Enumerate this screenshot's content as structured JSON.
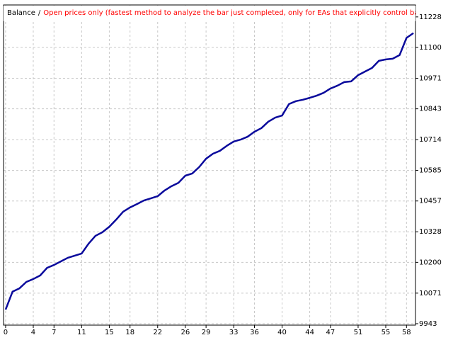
{
  "chart_data": {
    "type": "line",
    "title": "Balance",
    "separator": "/",
    "subtitle": "Open prices only (fastest method to analyze the bar just completed, only for EAs that explicitly control bar opening",
    "x": [
      0,
      1,
      2,
      3,
      4,
      5,
      6,
      7,
      8,
      9,
      10,
      11,
      12,
      13,
      14,
      15,
      16,
      17,
      18,
      19,
      20,
      21,
      22,
      23,
      24,
      25,
      26,
      27,
      28,
      29,
      30,
      31,
      32,
      33,
      34,
      35,
      36,
      37,
      38,
      39,
      40,
      41,
      42,
      43,
      44,
      45,
      46,
      47,
      48,
      49,
      50,
      51,
      52,
      53,
      54,
      55,
      56,
      57,
      58,
      59
    ],
    "series": [
      {
        "name": "Balance",
        "color": "#0a0a9c",
        "values": [
          10002,
          10077,
          10091,
          10118,
          10130,
          10145,
          10177,
          10189,
          10204,
          10219,
          10228,
          10237,
          10278,
          10311,
          10326,
          10349,
          10379,
          10412,
          10430,
          10444,
          10459,
          10468,
          10477,
          10501,
          10519,
          10533,
          10563,
          10572,
          10599,
          10634,
          10655,
          10667,
          10688,
          10706,
          10714,
          10726,
          10747,
          10762,
          10789,
          10806,
          10815,
          10863,
          10875,
          10881,
          10889,
          10898,
          10910,
          10928,
          10940,
          10955,
          10958,
          10984,
          10999,
          11014,
          11044,
          11050,
          11053,
          11068,
          11140,
          11160
        ]
      }
    ],
    "xlim": [
      -0.3,
      59.3
    ],
    "xticks": [
      0,
      4,
      7,
      11,
      15,
      18,
      22,
      26,
      29,
      33,
      36,
      40,
      44,
      47,
      51,
      55,
      58
    ],
    "ylim": [
      9937,
      11278
    ],
    "yticks": [
      9943,
      10071,
      10200,
      10328,
      10457,
      10585,
      10714,
      10843,
      10971,
      11100,
      11228
    ],
    "grid": true,
    "title_color": "#000000",
    "subtitle_color": "#ff0000"
  }
}
